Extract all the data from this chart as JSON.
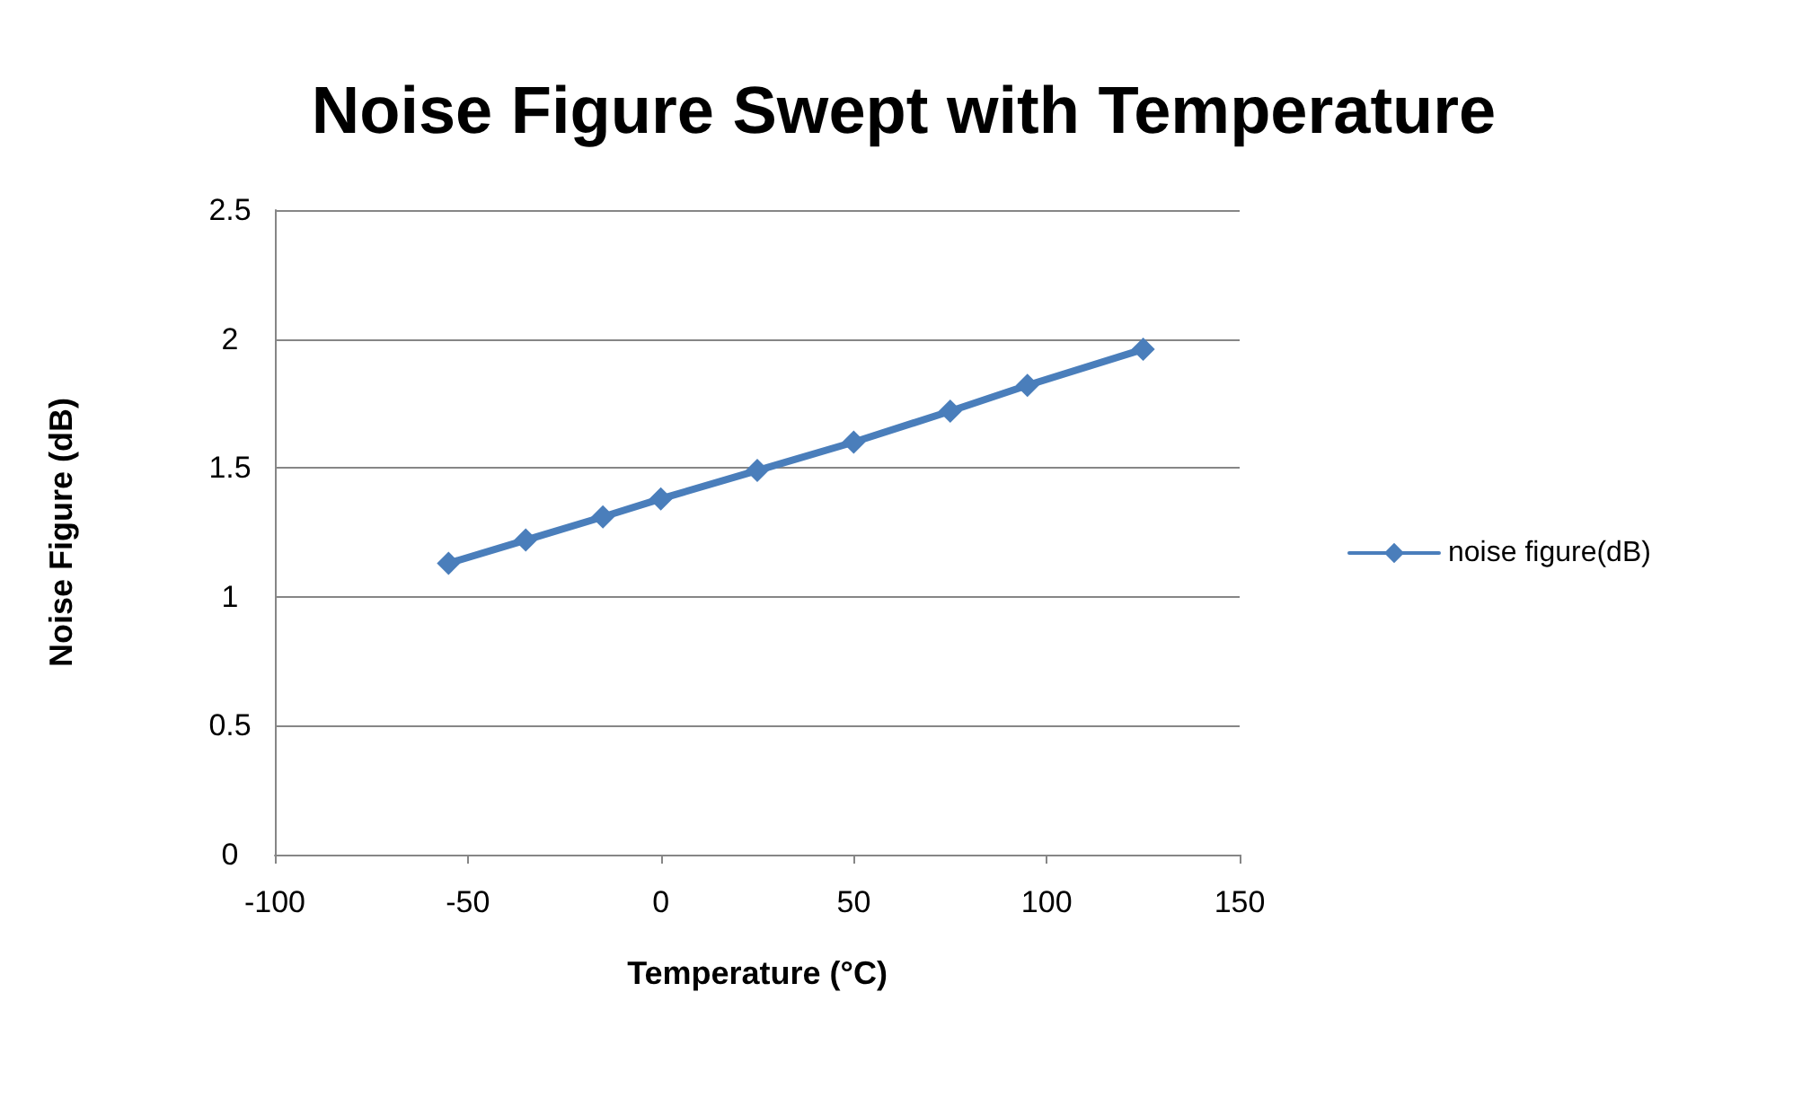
{
  "chart_data": {
    "type": "line",
    "title": "Noise Figure Swept with Temperature",
    "xlabel": "Temperature (°C)",
    "ylabel": "Noise Figure (dB)",
    "x": [
      -55,
      -35,
      -15,
      0,
      25,
      50,
      75,
      95,
      125
    ],
    "series": [
      {
        "name": "noise figure(dB)",
        "color": "#4a7ebb",
        "values": [
          1.13,
          1.22,
          1.31,
          1.38,
          1.49,
          1.6,
          1.72,
          1.82,
          1.96
        ]
      }
    ],
    "xlim": [
      -100,
      150
    ],
    "xticks": [
      -100,
      -50,
      0,
      50,
      100,
      150
    ],
    "ylim": [
      0,
      2.5
    ],
    "yticks": [
      0,
      0.5,
      1,
      1.5,
      2,
      2.5
    ],
    "grid": "y",
    "legend": "right",
    "marker": "diamond",
    "line_style": "solid"
  }
}
